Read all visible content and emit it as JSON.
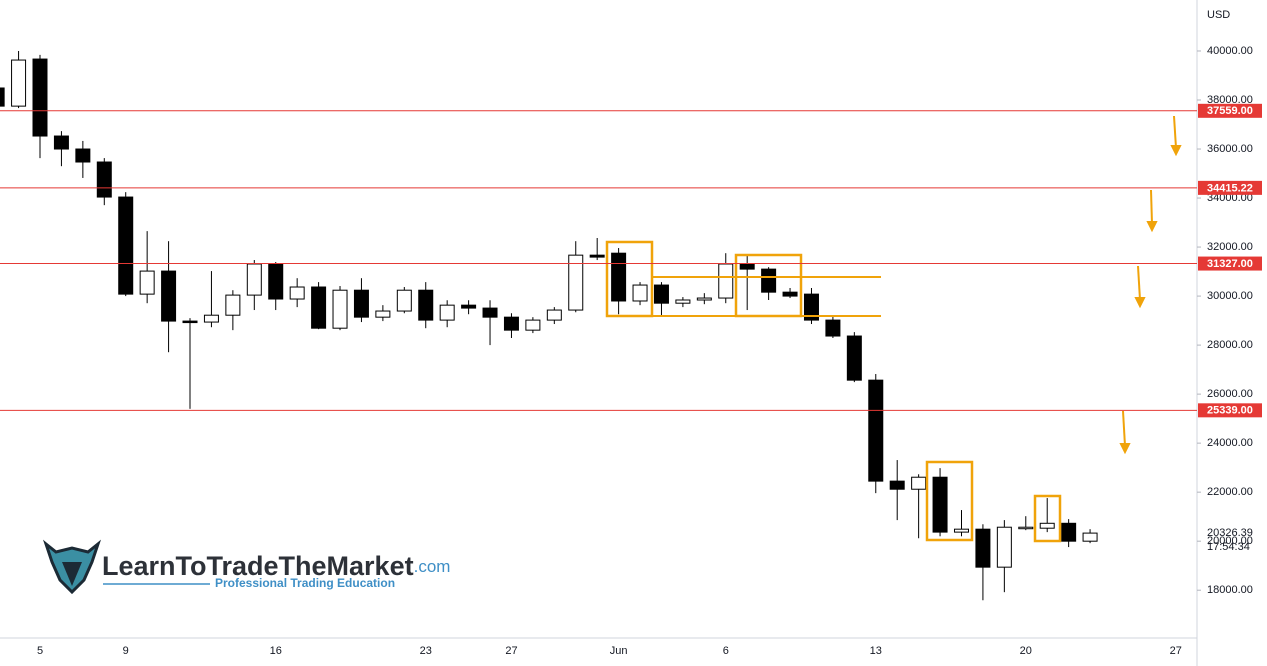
{
  "chart_data": {
    "type": "candlestick",
    "currency": "USD",
    "categories": [
      null,
      null,
      "5",
      null,
      null,
      null,
      "9",
      null,
      null,
      null,
      null,
      null,
      null,
      "16",
      null,
      null,
      null,
      null,
      null,
      null,
      "23",
      null,
      null,
      null,
      "27",
      null,
      null,
      null,
      null,
      "Jun",
      null,
      null,
      null,
      null,
      "6",
      null,
      null,
      null,
      null,
      null,
      null,
      "13",
      null,
      null,
      null,
      null,
      null,
      null,
      "20",
      null,
      null,
      null,
      null,
      null,
      null,
      "27"
    ],
    "open": [
      38490,
      37750,
      39670,
      36530,
      36000,
      35470,
      34040,
      30080,
      31020,
      28980,
      28940,
      29220,
      30040,
      31310,
      29880,
      30370,
      28690,
      30240,
      29140,
      29390,
      30240,
      29020,
      29630,
      29510,
      29140,
      28610,
      29020,
      29430,
      31670,
      31750,
      29800,
      30450,
      29710,
      29840,
      29920,
      31310,
      31100,
      30160,
      30080,
      29020,
      28370,
      26570,
      22450,
      22120,
      22610,
      20370,
      20490,
      18940,
      20530,
      20530,
      20730,
      20000,
      null,
      null,
      null,
      null
    ],
    "high": [
      38700,
      40000,
      39840,
      36730,
      36330,
      35630,
      34240,
      32650,
      32240,
      29100,
      31020,
      30240,
      31470,
      31390,
      30730,
      30570,
      30410,
      30730,
      29630,
      30370,
      30570,
      29830,
      29830,
      29830,
      29300,
      29140,
      29550,
      32240,
      32370,
      31960,
      30570,
      30570,
      29960,
      30120,
      31750,
      31670,
      31180,
      30330,
      30330,
      29220,
      28530,
      26820,
      23310,
      22730,
      22980,
      21270,
      20690,
      20860,
      21020,
      21760,
      20900,
      20490,
      null,
      null,
      null,
      null
    ],
    "low": [
      37600,
      37670,
      35630,
      35300,
      34820,
      33710,
      30000,
      29710,
      27710,
      25400,
      28730,
      28610,
      29430,
      29430,
      29550,
      28650,
      28610,
      28940,
      28980,
      29300,
      28690,
      28730,
      29260,
      28000,
      28290,
      28490,
      28860,
      29340,
      31470,
      29260,
      29630,
      29220,
      29550,
      29670,
      29710,
      29430,
      29840,
      29920,
      28860,
      28290,
      26490,
      21960,
      20860,
      20120,
      20200,
      20200,
      17590,
      17920,
      20450,
      20370,
      19760,
      19920,
      null,
      null,
      null,
      null
    ],
    "close": [
      37750,
      39630,
      36530,
      36000,
      35470,
      34040,
      30080,
      31020,
      28980,
      28950,
      29220,
      30040,
      31310,
      29880,
      30370,
      28690,
      30240,
      29140,
      29390,
      30240,
      29020,
      29630,
      29510,
      29140,
      28610,
      29020,
      29430,
      31670,
      31590,
      29800,
      30450,
      29710,
      29840,
      29920,
      31310,
      31100,
      30160,
      30000,
      29020,
      28370,
      26570,
      22450,
      22120,
      22610,
      20370,
      20490,
      18940,
      20570,
      20570,
      20730,
      20000,
      20330,
      null,
      null,
      null,
      null
    ],
    "up_color": "#ffffff",
    "down_color": "#000000",
    "wick_color": "#000000",
    "ylim": [
      16050,
      42080
    ],
    "yticks": [
      {
        "value": 18000,
        "label": "18000.00"
      },
      {
        "value": 20000,
        "label": "20000.00"
      },
      {
        "value": 22000,
        "label": "22000.00"
      },
      {
        "value": 24000,
        "label": "24000.00"
      },
      {
        "value": 26000,
        "label": "26000.00"
      },
      {
        "value": 28000,
        "label": "28000.00"
      },
      {
        "value": 30000,
        "label": "30000.00"
      },
      {
        "value": 32000,
        "label": "32000.00"
      },
      {
        "value": 34000,
        "label": "34000.00"
      },
      {
        "value": 36000,
        "label": "36000.00"
      },
      {
        "value": 38000,
        "label": "38000.00"
      },
      {
        "value": 40000,
        "label": "40000.00"
      }
    ],
    "levels": {
      "values": [
        37559,
        34415.22,
        31327,
        25339
      ],
      "value_labels": [
        "37559.00",
        "34415.22",
        "31327.00",
        "25339.00"
      ],
      "color": "#e53935"
    },
    "last_price": 20326.39,
    "countdown": "17:54:34",
    "brand": {
      "name": "LearnToTradeTheMarket",
      "suffix": ".com",
      "tagline": "Professional Trading Education"
    }
  }
}
